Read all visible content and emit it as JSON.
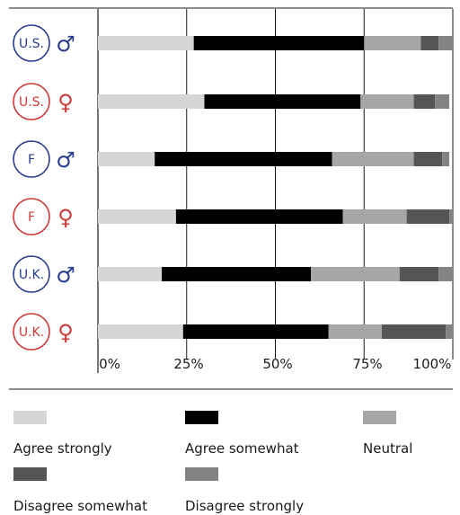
{
  "chart_data": {
    "type": "bar",
    "orientation": "horizontal",
    "stacked": true,
    "categories": [
      {
        "region": "U.S.",
        "gender": "♂",
        "color": "#2a3d8f"
      },
      {
        "region": "U.S.",
        "gender": "♀",
        "color": "#d03a3a"
      },
      {
        "region": "F",
        "gender": "♂",
        "color": "#2a3d8f"
      },
      {
        "region": "F",
        "gender": "♀",
        "color": "#d03a3a"
      },
      {
        "region": "U.K.",
        "gender": "♂",
        "color": "#2a3d8f"
      },
      {
        "region": "U.K.",
        "gender": "♀",
        "color": "#d03a3a"
      }
    ],
    "series": [
      {
        "name": "Agree strongly",
        "color": "#d6d6d6",
        "values": [
          27,
          30,
          16,
          22,
          18,
          24
        ]
      },
      {
        "name": "Agree somewhat",
        "color": "#000000",
        "values": [
          48,
          44,
          50,
          47,
          42,
          41
        ]
      },
      {
        "name": "Neutral",
        "color": "#a6a6a6",
        "values": [
          16,
          15,
          23,
          18,
          25,
          15
        ]
      },
      {
        "name": "Disagree somewhat",
        "color": "#555555",
        "values": [
          5,
          6,
          8,
          12,
          11,
          18
        ]
      },
      {
        "name": "Disagree strongly",
        "color": "#838383",
        "values": [
          4,
          4,
          2,
          1,
          4,
          2
        ]
      }
    ],
    "x_ticks": [
      "0%",
      "25%",
      "50%",
      "75%",
      "100%"
    ],
    "xlim": [
      0,
      100
    ],
    "grid": "vertical",
    "legend_placement": "bottom"
  }
}
